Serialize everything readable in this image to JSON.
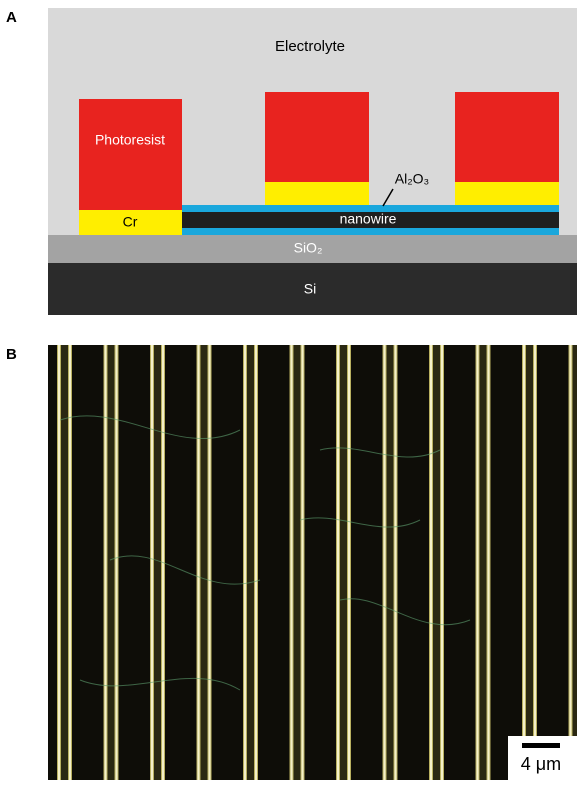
{
  "panel_a": {
    "letter": "A",
    "electrolyte": "Electrolyte",
    "photoresist": "Photoresist",
    "cr": "Cr",
    "al2o3": "Al₂O₃",
    "nanowire": "nanowire",
    "sio2": "SiO₂",
    "si": "Si"
  },
  "panel_b": {
    "letter": "B",
    "scale_bar": "4 μm"
  }
}
